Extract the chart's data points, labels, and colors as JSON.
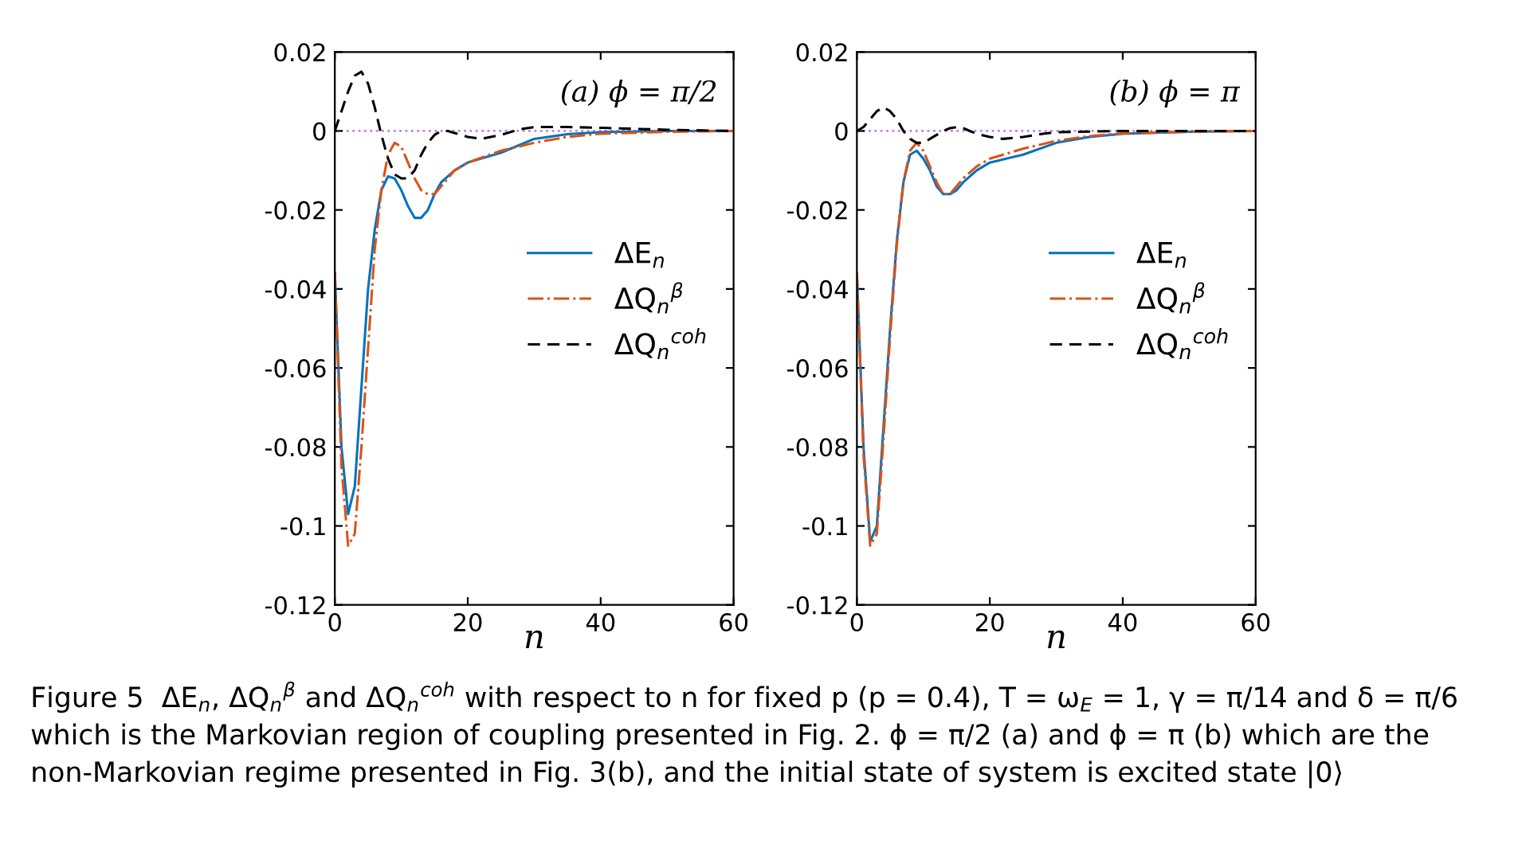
{
  "chart_data": [
    {
      "type": "line",
      "xlabel": "n",
      "xlim": [
        0,
        60
      ],
      "xticks": [
        0,
        20,
        40,
        60
      ],
      "ylim": [
        -0.12,
        0.02
      ],
      "yticks": [
        -0.12,
        -0.1,
        -0.08,
        -0.06,
        -0.04,
        -0.02,
        0,
        0.02
      ],
      "grid": false,
      "legend": "right",
      "annotations": [
        "(a) ϕ = π/2",
        "Figure 5  ΔE$_{n}$, ΔQ$_{n}$$^{β}$ and ΔQ$_{n}$$^{coh}$ with respect to n for fixed p (p = 0.4), T = ω$_{E}$ = 1, γ = π/14 and δ = π/6 which is the Markovian region of coupling presented in Fig. 2. ϕ = π/2 (a) and ϕ = π (b) which are the non-Markovian regime presented in Fig. 3(b), and the initial state of system is excited state |0⟩"
      ],
      "ref_lines": [
        {
          "axis": "y",
          "value": 0,
          "color": "#c080e0",
          "line_style": "dotted"
        }
      ],
      "series": [
        {
          "name": "ΔE$_{n}$",
          "color": "#0072bd",
          "line_style": "solid",
          "x": [
            0,
            1,
            2,
            3,
            4,
            5,
            6,
            7,
            8,
            9,
            10,
            11,
            12,
            13,
            14,
            15,
            16,
            18,
            20,
            25,
            30,
            35,
            40,
            50,
            60
          ],
          "values": [
            -0.036,
            -0.08,
            -0.097,
            -0.09,
            -0.065,
            -0.04,
            -0.025,
            -0.015,
            -0.0115,
            -0.012,
            -0.015,
            -0.019,
            -0.022,
            -0.022,
            -0.02,
            -0.016,
            -0.013,
            -0.01,
            -0.008,
            -0.0055,
            -0.002,
            -0.0008,
            -0.0003,
            0,
            0
          ]
        },
        {
          "name": "ΔQ$_{n}$$^{β}$",
          "color": "#d95319",
          "line_style": "dashdot",
          "x": [
            0,
            1,
            2,
            3,
            4,
            5,
            6,
            7,
            8,
            9,
            10,
            11,
            12,
            13,
            14,
            15,
            16,
            18,
            20,
            25,
            30,
            35,
            40,
            50,
            60
          ],
          "values": [
            -0.036,
            -0.085,
            -0.105,
            -0.102,
            -0.08,
            -0.055,
            -0.03,
            -0.015,
            -0.006,
            -0.003,
            -0.004,
            -0.008,
            -0.012,
            -0.015,
            -0.016,
            -0.016,
            -0.014,
            -0.01,
            -0.008,
            -0.005,
            -0.003,
            -0.0015,
            -0.0007,
            -0.0002,
            0
          ]
        },
        {
          "name": "ΔQ$_{n}$$^{coh}$",
          "color": "#000000",
          "line_style": "dashed",
          "x": [
            0,
            1,
            2,
            3,
            4,
            5,
            6,
            7,
            8,
            9,
            10,
            11,
            12,
            13,
            14,
            15,
            16,
            17,
            18,
            20,
            22,
            25,
            28,
            30,
            35,
            40,
            50,
            60
          ],
          "values": [
            0,
            0.005,
            0.01,
            0.014,
            0.015,
            0.012,
            0.006,
            -0.001,
            -0.007,
            -0.011,
            -0.012,
            -0.012,
            -0.01,
            -0.006,
            -0.003,
            -0.001,
            0,
            0,
            -0.0005,
            -0.0015,
            -0.002,
            -0.001,
            0.0005,
            0.001,
            0.001,
            0.0008,
            0.0003,
            0
          ]
        }
      ]
    },
    {
      "type": "line",
      "xlabel": "n",
      "xlim": [
        0,
        60
      ],
      "xticks": [
        0,
        20,
        40,
        60
      ],
      "ylim": [
        -0.12,
        0.02
      ],
      "yticks": [
        -0.12,
        -0.1,
        -0.08,
        -0.06,
        -0.04,
        -0.02,
        0,
        0.02
      ],
      "grid": false,
      "legend": "right",
      "annotations": [
        "(b) ϕ = π"
      ],
      "ref_lines": [
        {
          "axis": "y",
          "value": 0,
          "color": "#c080e0",
          "line_style": "dotted"
        }
      ],
      "series": [
        {
          "name": "ΔE$_{n}$",
          "color": "#0072bd",
          "line_style": "solid",
          "x": [
            0,
            1,
            2,
            3,
            4,
            5,
            6,
            7,
            8,
            9,
            10,
            11,
            12,
            13,
            14,
            15,
            16,
            18,
            20,
            25,
            30,
            35,
            40,
            50,
            60
          ],
          "values": [
            -0.036,
            -0.08,
            -0.104,
            -0.1,
            -0.075,
            -0.05,
            -0.028,
            -0.013,
            -0.006,
            -0.005,
            -0.007,
            -0.01,
            -0.014,
            -0.016,
            -0.016,
            -0.015,
            -0.013,
            -0.01,
            -0.008,
            -0.006,
            -0.003,
            -0.0015,
            -0.0007,
            -0.0002,
            0
          ]
        },
        {
          "name": "ΔQ$_{n}$$^{β}$",
          "color": "#d95319",
          "line_style": "dashdot",
          "x": [
            0,
            1,
            2,
            3,
            4,
            5,
            6,
            7,
            8,
            9,
            10,
            11,
            12,
            13,
            14,
            15,
            16,
            18,
            20,
            25,
            30,
            35,
            40,
            50,
            60
          ],
          "values": [
            -0.036,
            -0.082,
            -0.105,
            -0.102,
            -0.078,
            -0.052,
            -0.029,
            -0.013,
            -0.005,
            -0.003,
            -0.005,
            -0.009,
            -0.013,
            -0.016,
            -0.016,
            -0.014,
            -0.012,
            -0.009,
            -0.007,
            -0.0045,
            -0.0025,
            -0.0013,
            -0.0006,
            -0.0002,
            0
          ]
        },
        {
          "name": "ΔQ$_{n}$$^{coh}$",
          "color": "#000000",
          "line_style": "dashed",
          "x": [
            0,
            1,
            2,
            3,
            4,
            5,
            6,
            7,
            8,
            9,
            10,
            11,
            12,
            13,
            14,
            15,
            16,
            17,
            18,
            20,
            22,
            25,
            28,
            30,
            40,
            60
          ],
          "values": [
            0,
            0.001,
            0.003,
            0.005,
            0.006,
            0.005,
            0.003,
            0,
            -0.002,
            -0.003,
            -0.003,
            -0.002,
            -0.001,
            0,
            0.0007,
            0.001,
            0.0007,
            0,
            -0.0007,
            -0.0015,
            -0.002,
            -0.0015,
            -0.0007,
            -0.0003,
            0,
            0
          ]
        }
      ]
    }
  ]
}
